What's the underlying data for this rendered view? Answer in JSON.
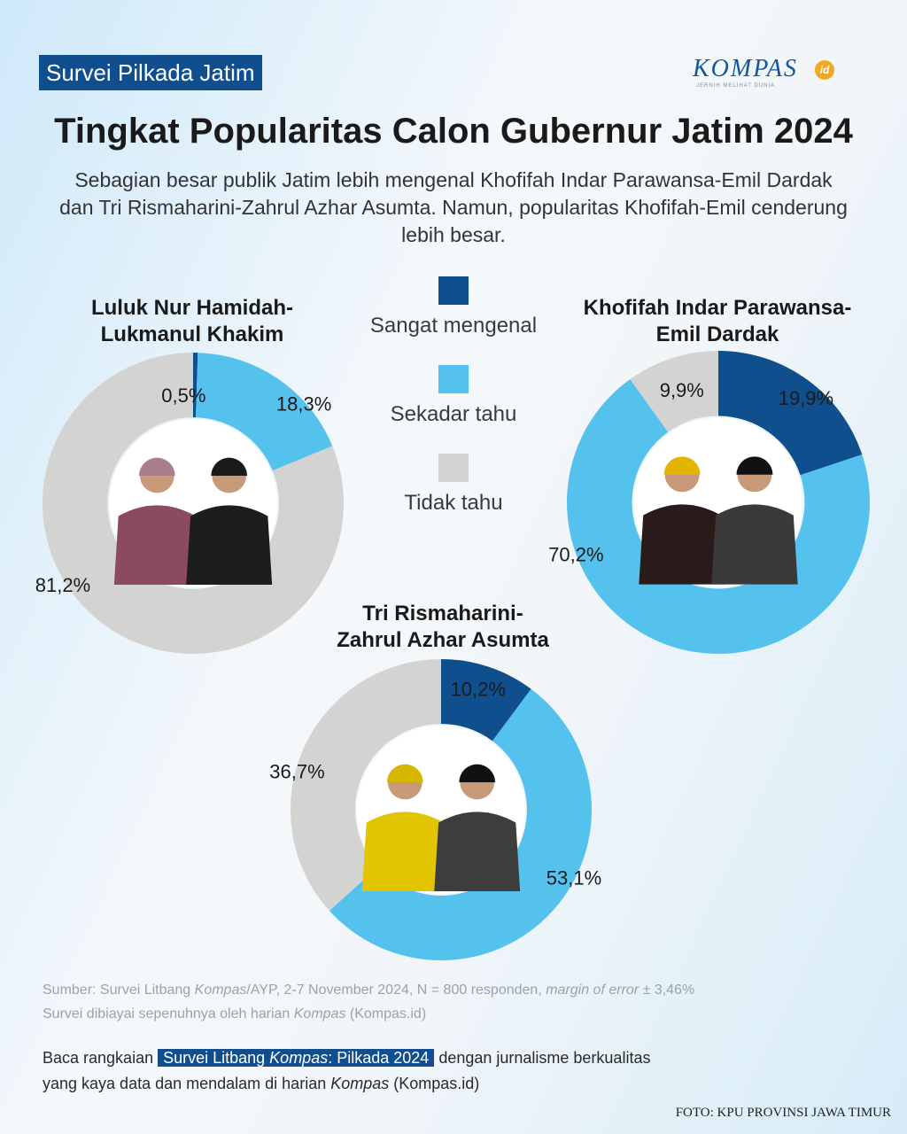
{
  "header": {
    "tag": "Survei Pilkada Jatim",
    "logo_text": "KOMPAS",
    "logo_suffix": "id",
    "logo_tagline": "JERNIH MELIHAT DUNIA",
    "title": "Tingkat Popularitas Calon Gubernur Jatim 2024",
    "subtitle": "Sebagian besar publik Jatim lebih mengenal Khofifah Indar Parawansa-Emil Dardak dan Tri Rismaharini-Zahrul Azhar Asumta. Namun, popularitas Khofifah-Emil cenderung lebih besar."
  },
  "colors": {
    "sangat_mengenal": "#0f4f8d",
    "sekadar_tahu": "#55c2ee",
    "tidak_tahu": "#d3d3d1",
    "accent": "#114e8d"
  },
  "chart_data": [
    {
      "type": "pie",
      "donut": true,
      "title_lines": [
        "Luluk Nur Hamidah-",
        "Lukmanul Khakim"
      ],
      "categories": [
        "Sangat mengenal",
        "Sekadar tahu",
        "Tidak tahu"
      ],
      "values": [
        0.5,
        18.3,
        81.2
      ],
      "labels": [
        "0,5%",
        "18,3%",
        "81,2%"
      ]
    },
    {
      "type": "pie",
      "donut": true,
      "title_lines": [
        "Khofifah Indar Parawansa-",
        "Emil Dardak"
      ],
      "categories": [
        "Sangat mengenal",
        "Sekadar tahu",
        "Tidak tahu"
      ],
      "values": [
        19.9,
        70.2,
        9.9
      ],
      "labels": [
        "19,9%",
        "70,2%",
        "9,9%"
      ]
    },
    {
      "type": "pie",
      "donut": true,
      "title_lines": [
        "Tri Rismaharini-",
        "Zahrul Azhar Asumta"
      ],
      "categories": [
        "Sangat mengenal",
        "Sekadar tahu",
        "Tidak tahu"
      ],
      "values": [
        10.2,
        53.1,
        36.7
      ],
      "labels": [
        "10,2%",
        "53,1%",
        "36,7%"
      ]
    }
  ],
  "legend": [
    {
      "label": "Sangat mengenal"
    },
    {
      "label": "Sekadar tahu"
    },
    {
      "label": "Tidak tahu"
    }
  ],
  "footer": {
    "source_prefix": "Sumber: Survei Litbang ",
    "source_kompas": "Kompas",
    "source_mid": "/AYP, 2-7 November 2024, N = 800  responden, ",
    "source_moe": "margin of error",
    "source_end": " ± 3,46%",
    "funding_prefix": "Survei dibiayai sepenuhnya oleh harian ",
    "funding_kompas": "Kompas",
    "funding_end": " (Kompas.id)",
    "cta_prefix": "Baca rangkaian ",
    "cta_highlight_a": "Survei Litbang ",
    "cta_highlight_kompas": "Kompas",
    "cta_highlight_b": ": Pilkada 2024",
    "cta_mid": " dengan jurnalisme berkualitas",
    "cta_line2_prefix": "yang kaya data dan mendalam di harian ",
    "cta_line2_kompas": "Kompas",
    "cta_line2_end": " (Kompas.id)",
    "photo_credit": "FOTO: KPU PROVINSI JAWA TIMUR"
  }
}
